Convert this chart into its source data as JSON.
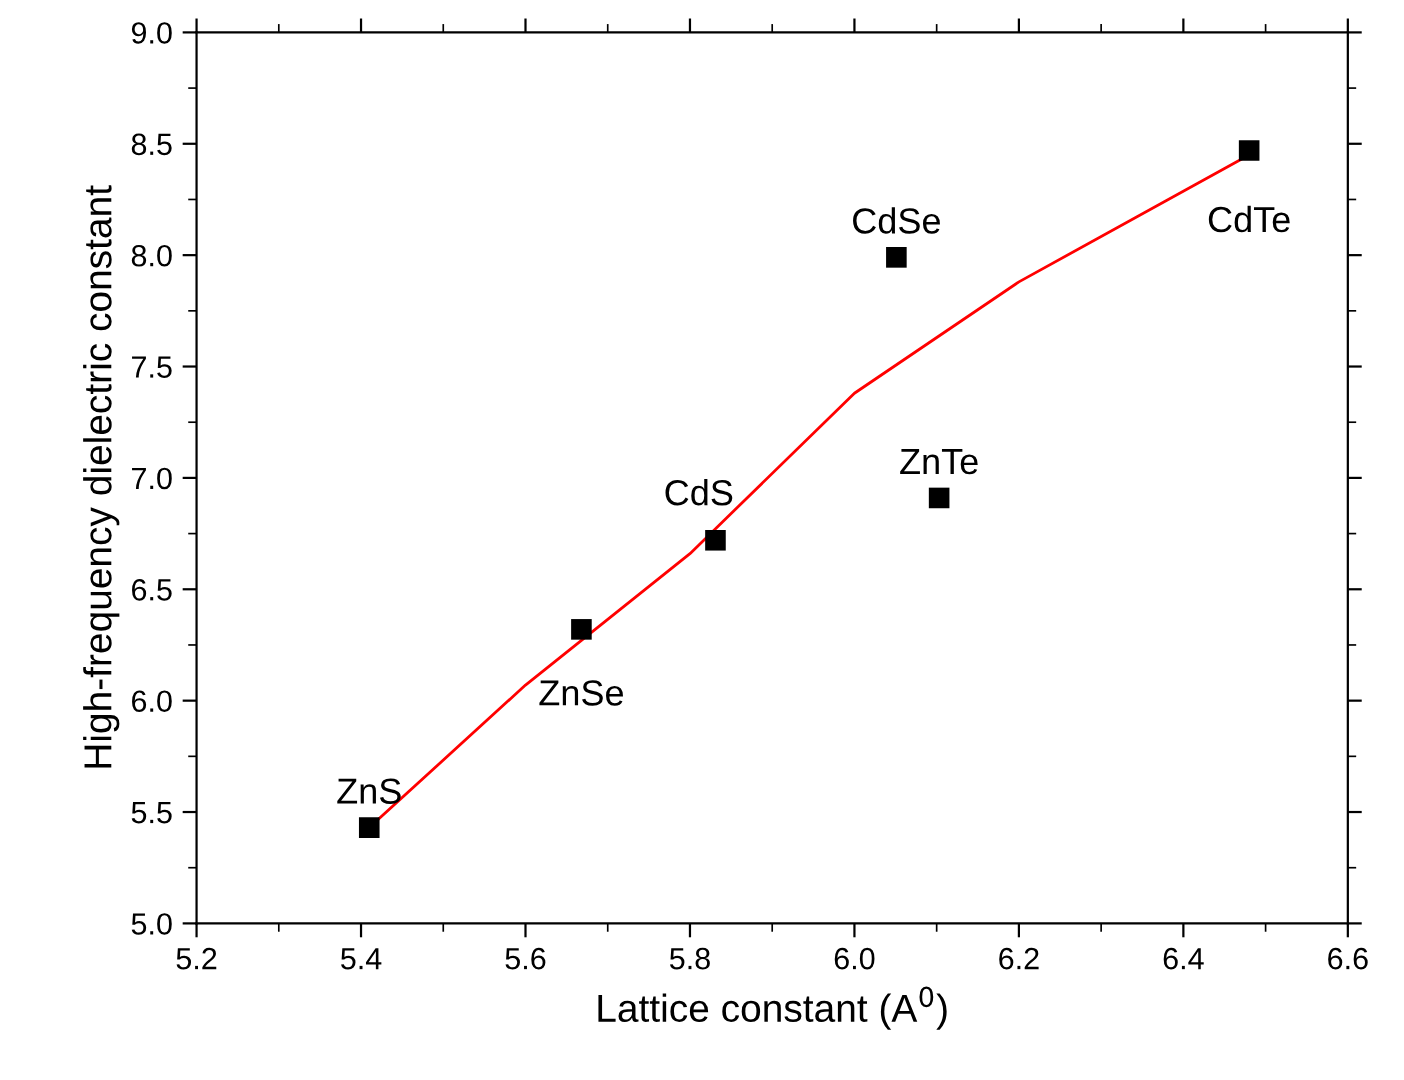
{
  "chart_data": {
    "type": "scatter",
    "xlabel": "Lattice constant (A$^{0}$)",
    "ylabel": "High-frequency dielectric constant",
    "xlim": [
      5.2,
      6.6
    ],
    "xticks": [
      5.2,
      5.4,
      5.6,
      5.8,
      {
        "value": 6,
        "label": "6.0"
      },
      6.2,
      6.4,
      6.6
    ],
    "ylim": [
      5.0,
      9.0
    ],
    "yticks": [
      {
        "value": 5,
        "label": "5.0"
      },
      5.5,
      {
        "value": 6,
        "label": "6.0"
      },
      6.5,
      {
        "value": 7,
        "label": "7.0"
      },
      7.5,
      {
        "value": 8,
        "label": "8.0"
      },
      8.5,
      {
        "value": 9,
        "label": "9.0"
      }
    ],
    "grid": false,
    "legend": false,
    "series": [
      {
        "color": "#000000",
        "marker": "square",
        "x": [
          5.41,
          5.668,
          5.831,
          6.051,
          6.103,
          6.48
        ],
        "values": [
          5.43,
          6.32,
          6.72,
          7.99,
          6.91,
          8.47
        ]
      },
      {
        "type": "line",
        "color": "#ff0000",
        "marker": "none",
        "line_style": "solid",
        "x": [
          5.41,
          5.6,
          5.8,
          6.0,
          6.2,
          6.48
        ],
        "values": [
          5.43,
          6.07,
          6.66,
          7.38,
          7.88,
          8.45
        ]
      }
    ],
    "annotations": [
      {
        "text": "ZnS",
        "x": 5.41,
        "y": 5.43
      },
      {
        "text": "ZnSe",
        "x": 5.668,
        "y": 6.32
      },
      {
        "text": "CdS",
        "x": 5.831,
        "y": 6.72
      },
      {
        "text": "CdSe",
        "x": 6.051,
        "y": 7.99
      },
      {
        "text": "ZnTe",
        "x": 6.103,
        "y": 6.91
      },
      {
        "text": "CdTe",
        "x": 6.48,
        "y": 8.47
      }
    ]
  }
}
